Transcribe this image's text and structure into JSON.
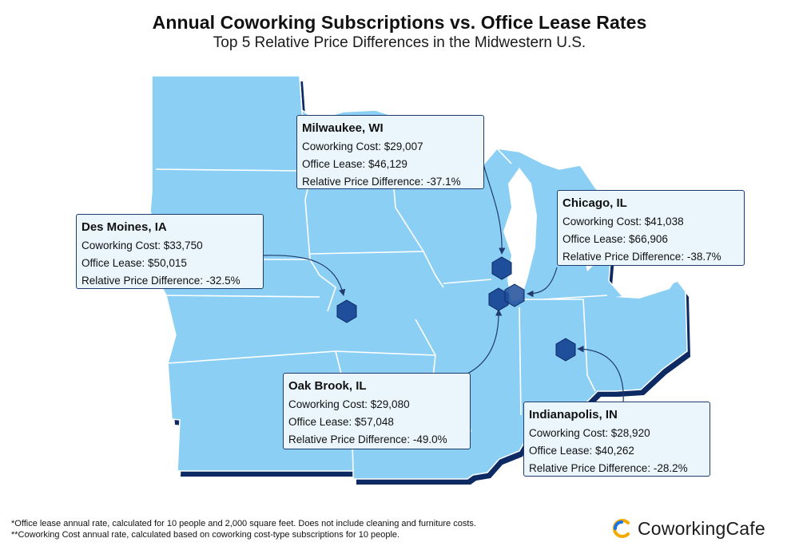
{
  "header": {
    "title": "Annual Coworking Subscriptions vs. Office Lease Rates",
    "subtitle": "Top 5 Relative Price Differences in the Midwestern U.S."
  },
  "colors": {
    "land": "#8ccff5",
    "state_border": "#ffffff",
    "shadow": "#0d2a63",
    "lake": "#ffffff",
    "marker": "#1f4e9a",
    "card_bg": "#eaf6fc",
    "card_border": "#1f3b6e"
  },
  "cities": [
    {
      "id": "milwaukee",
      "name": "Milwaukee, WI",
      "coworking": "Coworking Cost: $29,007",
      "lease": "Office Lease: $46,129",
      "diff": "Relative Price Difference: -37.1%"
    },
    {
      "id": "des-moines",
      "name": "Des Moines, IA",
      "coworking": "Coworking Cost: $33,750",
      "lease": "Office Lease: $50,015",
      "diff": "Relative Price Difference: -32.5%"
    },
    {
      "id": "chicago",
      "name": "Chicago, IL",
      "coworking": "Coworking Cost: $41,038",
      "lease": "Office Lease: $66,906",
      "diff": "Relative Price Difference: -38.7%"
    },
    {
      "id": "oak-brook",
      "name": "Oak Brook, IL",
      "coworking": "Coworking Cost: $29,080",
      "lease": "Office Lease: $57,048",
      "diff": "Relative Price Difference: -49.0%"
    },
    {
      "id": "indianapolis",
      "name": "Indianapolis, IN",
      "coworking": "Coworking Cost: $28,920",
      "lease": "Office Lease: $40,262",
      "diff": "Relative Price Difference: -28.2%"
    }
  ],
  "footnotes": [
    "*Office lease annual rate, calculated for 10 people and 2,000 square feet. Does not include cleaning and furniture costs.",
    "**Coworking Cost annual rate, calculated based on coworking cost-type subscriptions for 10 people."
  ],
  "brand": {
    "name": "CoworkingCafe",
    "logo_icon": "coworkingcafe-c-logo-icon"
  }
}
